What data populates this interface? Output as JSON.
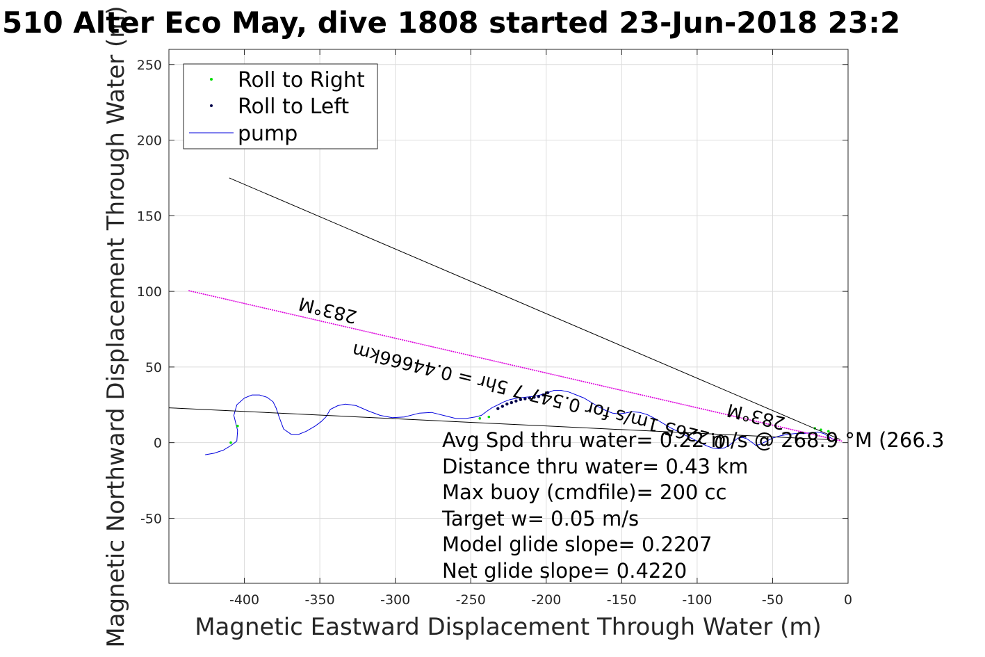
{
  "chart_data": {
    "type": "line",
    "title": "510 Alter Eco May, dive 1808 started 23-Jun-2018 23:2",
    "xlabel": "Magnetic Eastward Displacement Through Water (m)",
    "ylabel": "Magnetic Northward Displacement Through Water (m)",
    "xlim": [
      -450,
      0
    ],
    "ylim": [
      -93,
      260
    ],
    "xticks": [
      -400,
      -350,
      -300,
      -250,
      -200,
      -150,
      -100,
      -50,
      0
    ],
    "yticks": [
      -50,
      0,
      50,
      100,
      150,
      200,
      250
    ],
    "grid": true,
    "legend": {
      "placement": "top-left",
      "entries": [
        {
          "label": "Roll to Right",
          "color": "#00dd00",
          "marker": "dot"
        },
        {
          "label": "Roll to Left",
          "color": "#00004a",
          "marker": "dot"
        },
        {
          "label": "pump",
          "color": "#0000dd",
          "marker": "line"
        }
      ]
    },
    "series": [
      {
        "name": "pump",
        "color": "#0000dd",
        "x": [
          -426,
          -420,
          -414,
          -409,
          -405,
          -404.5,
          -407,
          -405,
          -400,
          -395,
          -390,
          -385,
          -381,
          -379,
          -377,
          -374,
          -369,
          -364,
          -359,
          -353,
          -349,
          -346,
          -343,
          -338,
          -333,
          -326,
          -318,
          -310,
          -302,
          -294,
          -284,
          -276,
          -268,
          -260,
          -253,
          -247,
          -243,
          -239,
          -236,
          -232,
          -228,
          -224,
          -219,
          -214,
          -209,
          -204,
          -199,
          -195,
          -190,
          -185,
          -180,
          -175,
          -170,
          -165,
          -160,
          -156,
          -152,
          -148,
          -143,
          -138,
          -133,
          -128,
          -123,
          -118,
          -113,
          -108,
          -103,
          -98,
          -94,
          -90,
          -86,
          -82,
          -79,
          -76,
          -73,
          -70,
          -67,
          -64,
          -61,
          -58,
          -54,
          -50,
          -45,
          -40,
          -35,
          -30,
          -25,
          -20,
          -16,
          -12,
          -8
        ],
        "y": [
          -8,
          -7,
          -5,
          -2,
          1,
          8,
          18,
          25,
          29.5,
          31.5,
          31.5,
          30,
          27,
          23,
          17,
          9,
          5.5,
          5.5,
          7.5,
          11,
          14,
          17,
          22,
          24.5,
          25.5,
          24.5,
          21,
          18,
          16.5,
          17,
          19.5,
          20,
          18,
          16,
          16,
          17,
          18,
          21,
          23,
          25,
          27,
          28.5,
          29.5,
          30,
          30.5,
          31.5,
          33,
          34.5,
          34.5,
          33.5,
          31.5,
          29.5,
          26.5,
          23.5,
          21,
          19.5,
          19,
          19.5,
          20.5,
          20,
          18.5,
          16,
          13,
          10,
          7.5,
          5,
          2.5,
          0,
          -2,
          -3.5,
          -4,
          -3.5,
          -2,
          0.5,
          3,
          3.5,
          2.5,
          0.5,
          -2,
          -1,
          1,
          3,
          4.5,
          5.5,
          6,
          6,
          6.5,
          7,
          6,
          3.5,
          1
        ]
      },
      {
        "name": "Roll to Left",
        "color": "#00004a",
        "x": [
          -232,
          -229,
          -226,
          -223,
          -220,
          -217,
          -214,
          -211,
          -208,
          -205,
          -202,
          -199
        ],
        "y": [
          22.5,
          24,
          25.5,
          26.5,
          27.5,
          28.5,
          29,
          29.5,
          30,
          30.5,
          31.5,
          33
        ]
      },
      {
        "name": "Roll to Right",
        "color": "#00dd00",
        "x": [
          -409,
          -404.5,
          -244,
          -238,
          -22,
          -18,
          -13
        ],
        "y": [
          0,
          11,
          16,
          17,
          9.5,
          8.5,
          7.5
        ]
      },
      {
        "name": "",
        "color": "#000000",
        "x": [
          -450,
          -12
        ],
        "y": [
          23,
          2
        ]
      },
      {
        "name": "",
        "color": "#000000",
        "x": [
          -410,
          -5
        ],
        "y": [
          175,
          2
        ]
      },
      {
        "name": "",
        "color": "#dd00dd",
        "x": [
          -437,
          -4
        ],
        "y": [
          100.5,
          1
        ]
      }
    ],
    "annotations": {
      "heading_1": "283°M",
      "heading_2": "283°M",
      "speed_label": "0.2265 1m/s for 0.547 7 5hr = 0.44666km",
      "avg_spd": "Avg Spd thru water=  0.22 m/s @ 268.9 °M (266.3",
      "distance": "Distance thru water=  0.43 km",
      "max_buoy": "Max buoy (cmdfile)= 200 cc",
      "target_w": "Target w= 0.05 m/s",
      "model_glide": "Model glide slope= 0.2207",
      "net_glide": "Net glide slope= 0.4220"
    }
  }
}
